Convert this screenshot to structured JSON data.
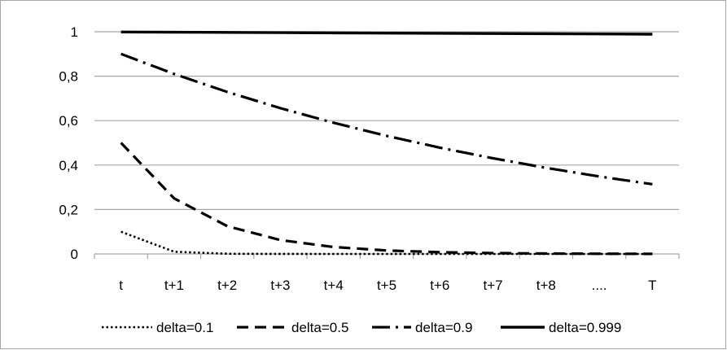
{
  "chart_data": {
    "type": "line",
    "title": "",
    "xlabel": "",
    "ylabel": "",
    "categories": [
      "t",
      "t+1",
      "t+2",
      "t+3",
      "t+4",
      "t+5",
      "t+6",
      "t+7",
      "t+8",
      "....",
      "T"
    ],
    "ylim": [
      0,
      1
    ],
    "yticks": [
      "0",
      "0,2",
      "0,4",
      "0,6",
      "0,8",
      "1"
    ],
    "grid": true,
    "legend_position": "bottom",
    "series": [
      {
        "name": "delta=0.1",
        "line_style": "dotted",
        "values": [
          0.1,
          0.01,
          0.001,
          0.0001,
          1e-05,
          1e-06,
          1e-07,
          1e-08,
          1e-09,
          1e-10,
          1e-11
        ]
      },
      {
        "name": "delta=0.5",
        "line_style": "dashed",
        "values": [
          0.5,
          0.25,
          0.125,
          0.0625,
          0.03125,
          0.015625,
          0.0078125,
          0.00390625,
          0.001953125,
          0.0009765625,
          0.00048828125
        ]
      },
      {
        "name": "delta=0.9",
        "line_style": "dash-dot",
        "values": [
          0.9,
          0.81,
          0.729,
          0.6561,
          0.59049,
          0.531441,
          0.4782969,
          0.43046721,
          0.387420489,
          0.3486784401,
          0.31381059609
        ]
      },
      {
        "name": "delta=0.999",
        "line_style": "solid",
        "values": [
          0.999,
          0.998,
          0.997,
          0.996,
          0.995,
          0.994,
          0.993,
          0.992,
          0.991,
          0.99,
          0.989
        ]
      }
    ],
    "colors": {
      "line": "#000000",
      "grid": "#a6a6a6",
      "border": "#a6a6a6"
    }
  }
}
